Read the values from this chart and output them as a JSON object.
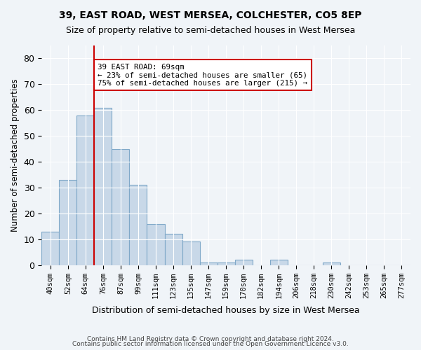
{
  "title": "39, EAST ROAD, WEST MERSEA, COLCHESTER, CO5 8EP",
  "subtitle": "Size of property relative to semi-detached houses in West Mersea",
  "xlabel": "Distribution of semi-detached houses by size in West Mersea",
  "ylabel": "Number of semi-detached properties",
  "footnote1": "Contains HM Land Registry data © Crown copyright and database right 2024.",
  "footnote2": "Contains public sector information licensed under the Open Government Licence v3.0.",
  "bin_labels": [
    "40sqm",
    "52sqm",
    "64sqm",
    "76sqm",
    "87sqm",
    "99sqm",
    "111sqm",
    "123sqm",
    "135sqm",
    "147sqm",
    "159sqm",
    "170sqm",
    "182sqm",
    "194sqm",
    "206sqm",
    "218sqm",
    "230sqm",
    "242sqm",
    "253sqm",
    "265sqm",
    "277sqm"
  ],
  "bar_values": [
    13,
    33,
    58,
    61,
    45,
    31,
    16,
    12,
    9,
    1,
    1,
    2,
    0,
    2,
    0,
    0,
    1,
    0,
    0,
    0,
    0
  ],
  "ylim": [
    0,
    85
  ],
  "yticks": [
    0,
    10,
    20,
    30,
    40,
    50,
    60,
    70,
    80
  ],
  "bar_color": "#c8d8e8",
  "bar_edge_color": "#7fa8c8",
  "annotation_text": "39 EAST ROAD: 69sqm\n← 23% of semi-detached houses are smaller (65)\n75% of semi-detached houses are larger (215) →",
  "annotation_box_color": "#ffffff",
  "annotation_box_edge": "#cc0000",
  "bg_color": "#f0f4f8",
  "grid_color": "#ffffff",
  "property_line_color": "#cc0000"
}
